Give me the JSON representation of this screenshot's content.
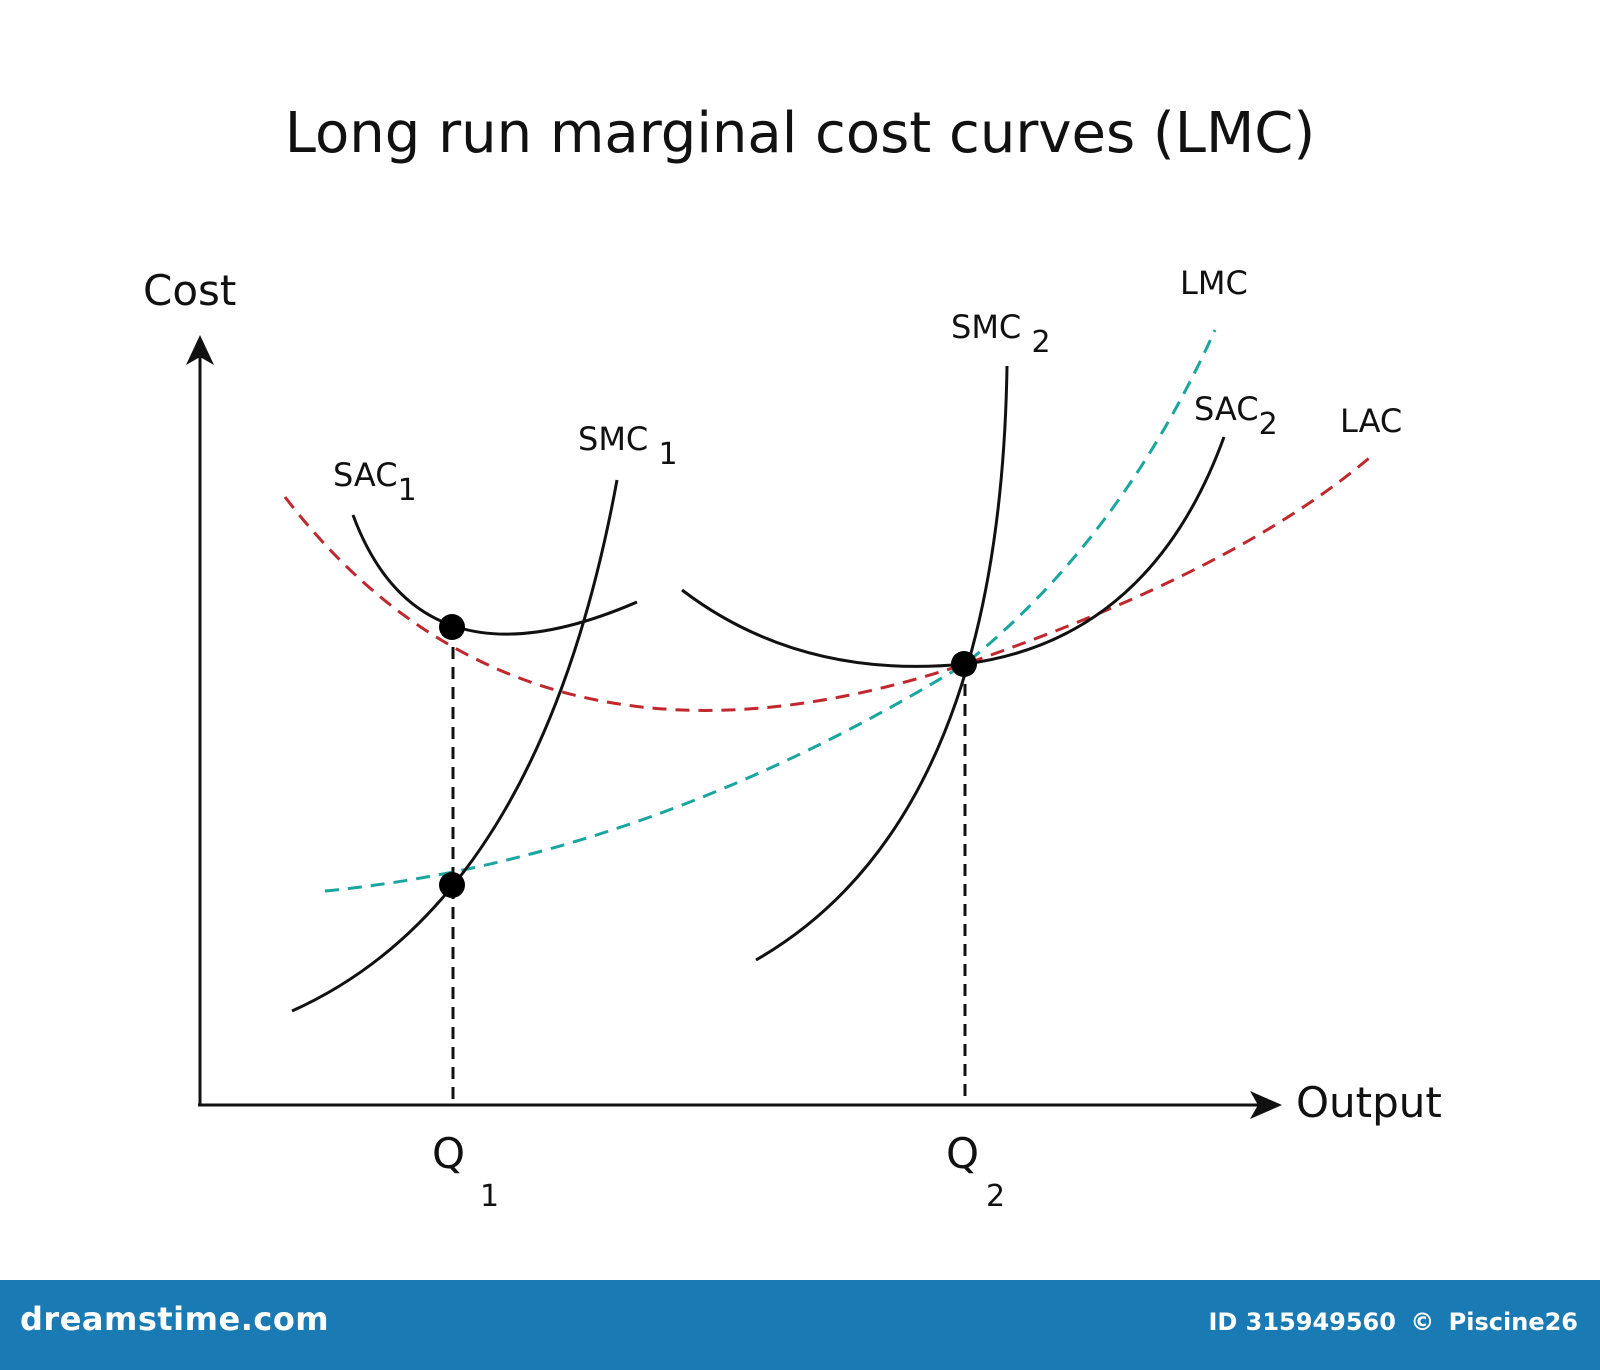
{
  "title": "Long run marginal cost curves (LMC)",
  "axes": {
    "y_label": "Cost",
    "x_label": "Output"
  },
  "ticks": [
    {
      "main": "Q",
      "sub": "1"
    },
    {
      "main": "Q",
      "sub": "2"
    }
  ],
  "curves": {
    "sac1": {
      "main": "SAC",
      "sub": "1",
      "color": "#111111"
    },
    "smc1": {
      "main": "SMC ",
      "sub": "1",
      "color": "#111111"
    },
    "sac2": {
      "main": "SAC",
      "sub": "2",
      "color": "#111111"
    },
    "smc2": {
      "main": "SMC ",
      "sub": "2",
      "color": "#111111"
    },
    "lmc": {
      "label": "LMC",
      "color": "#1aa6a0"
    },
    "lac": {
      "label": "LAC",
      "color": "#c0282e"
    }
  },
  "footer": {
    "brand": "dreamstime.com",
    "id_text": "ID 315949560",
    "copyright": "©",
    "author": "Piscine26",
    "background": "#1a7ab3"
  }
}
